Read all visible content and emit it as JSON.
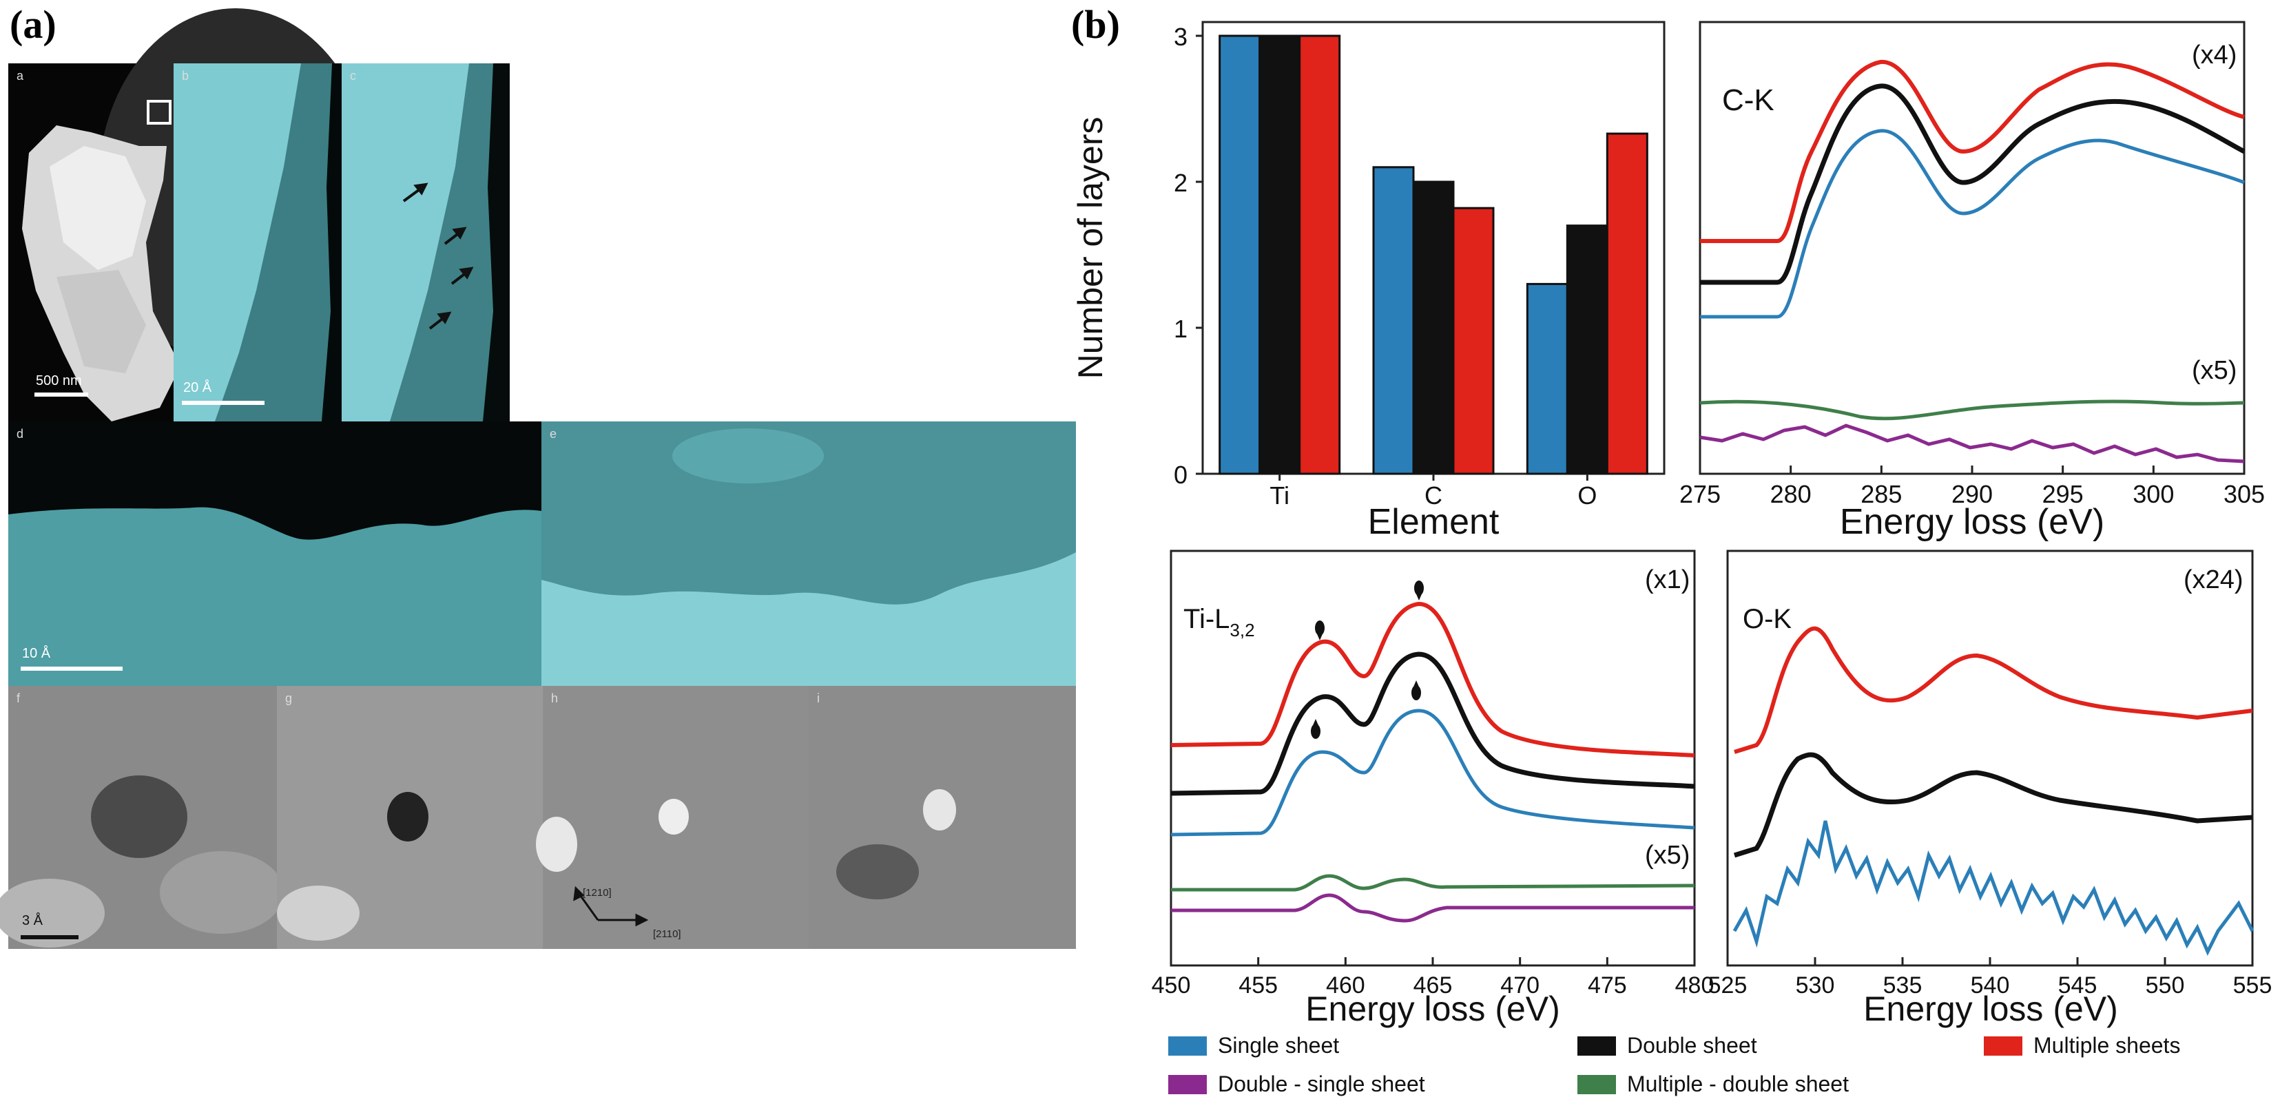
{
  "panel_labels": {
    "a": "(a)",
    "b": "(b)"
  },
  "microscopy": {
    "subpanels": [
      "a",
      "b",
      "c",
      "d",
      "e",
      "f",
      "g",
      "h",
      "i"
    ],
    "scale_bars": {
      "a": "500 nm",
      "b": "20 Å",
      "d": "10 Å",
      "f": "3 Å"
    },
    "directions": {
      "up": "[1210]",
      "right": "[2110]"
    }
  },
  "colors": {
    "single": "#2b7fb8",
    "double": "#111111",
    "multiple": "#e0231b",
    "double_minus_single": "#8b2a8e",
    "multiple_minus_double": "#3f7f4a"
  },
  "legend": {
    "single": "Single sheet",
    "double": "Double sheet",
    "multiple": "Multiple sheets",
    "double_minus_single": "Double - single sheet",
    "multiple_minus_double": "Multiple - double sheet"
  },
  "chart_data": [
    {
      "type": "bar",
      "title": "",
      "xlabel": "Element",
      "ylabel": "Number of layers",
      "categories": [
        "Ti",
        "C",
        "O"
      ],
      "ylim": [
        0,
        3
      ],
      "yticks": [
        "0",
        "1",
        "2",
        "3"
      ],
      "series": [
        {
          "name": "Single sheet",
          "values": [
            3.0,
            2.1,
            1.3
          ]
        },
        {
          "name": "Double sheet",
          "values": [
            3.0,
            2.0,
            1.7
          ]
        },
        {
          "name": "Multiple sheets",
          "values": [
            3.0,
            1.82,
            2.33
          ]
        }
      ]
    },
    {
      "type": "line",
      "title": "C-K",
      "xlabel": "Energy loss (eV)",
      "xlim": [
        275,
        305
      ],
      "xticks": [
        "275",
        "280",
        "285",
        "290",
        "295",
        "300",
        "305"
      ],
      "scale_top": "(x4)",
      "scale_bottom": "(x5)"
    },
    {
      "type": "line",
      "title": "Ti-L",
      "title_sub": "3,2",
      "xlabel": "Energy loss (eV)",
      "xlim": [
        450,
        480
      ],
      "xticks": [
        "450",
        "455",
        "460",
        "465",
        "470",
        "475",
        "480"
      ],
      "scale_top": "(x1)",
      "scale_bottom": "(x5)"
    },
    {
      "type": "line",
      "title": "O-K",
      "xlabel": "Energy loss (eV)",
      "xlim": [
        525,
        555
      ],
      "xticks": [
        "525",
        "530",
        "535",
        "540",
        "545",
        "550",
        "555"
      ],
      "scale_top": "(x24)"
    }
  ]
}
